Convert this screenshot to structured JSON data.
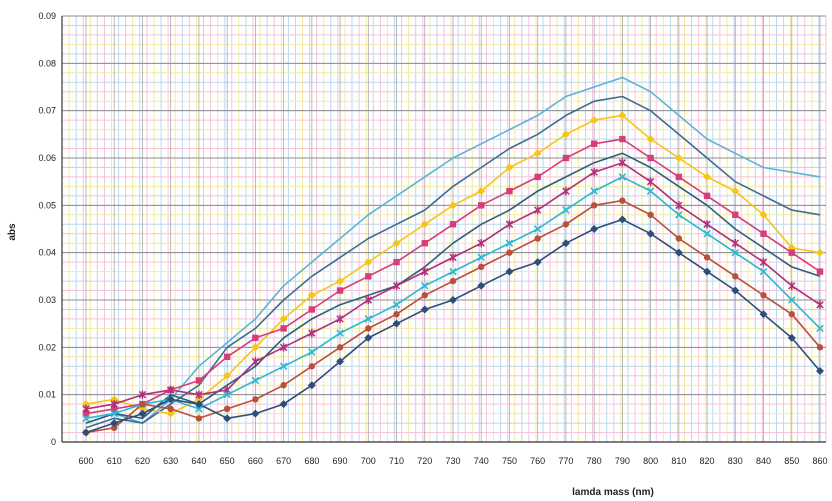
{
  "chart_data": {
    "type": "line",
    "xlabel": "lamda mass (nm)",
    "ylabel": "abs",
    "x": [
      600,
      610,
      620,
      630,
      640,
      650,
      660,
      670,
      680,
      690,
      700,
      710,
      720,
      730,
      740,
      750,
      760,
      770,
      780,
      790,
      800,
      810,
      820,
      830,
      840,
      850,
      860
    ],
    "x_tick_labels": [
      "600",
      "610",
      "620",
      "630",
      "640",
      "650",
      "660",
      "670",
      "680",
      "690",
      "700",
      "710",
      "720",
      "730",
      "740",
      "750",
      "760",
      "770",
      "780",
      "790",
      "800",
      "810",
      "820",
      "830",
      "840",
      "850",
      "860"
    ],
    "ylim": [
      0,
      0.09
    ],
    "y_ticks": [
      0,
      0.01,
      0.02,
      0.03,
      0.04,
      0.05,
      0.06,
      0.07,
      0.08,
      0.09
    ],
    "y_tick_labels": [
      "0",
      "0.01",
      "0.02",
      "0.03",
      "0.04",
      "0.05",
      "0.06",
      "0.07",
      "0.08",
      "0.09"
    ],
    "grid": true,
    "legend": "none",
    "series": [
      {
        "color": "#5bb3d6",
        "marker": "none",
        "values": [
          0.004,
          0.006,
          0.004,
          0.009,
          0.016,
          0.021,
          0.026,
          0.033,
          0.038,
          0.043,
          0.048,
          0.052,
          0.056,
          0.06,
          0.063,
          0.066,
          0.069,
          0.073,
          0.075,
          0.077,
          0.074,
          0.069,
          0.064,
          0.061,
          0.058,
          0.057,
          0.056
        ]
      },
      {
        "color": "#3d6c93",
        "marker": "none",
        "values": [
          0.003,
          0.005,
          0.004,
          0.008,
          0.012,
          0.02,
          0.024,
          0.03,
          0.035,
          0.039,
          0.043,
          0.046,
          0.049,
          0.054,
          0.058,
          0.062,
          0.065,
          0.069,
          0.072,
          0.073,
          0.07,
          0.065,
          0.06,
          0.055,
          0.052,
          0.049,
          0.048
        ]
      },
      {
        "color": "#f5c518",
        "marker": "diamond",
        "values": [
          0.008,
          0.009,
          0.007,
          0.006,
          0.009,
          0.014,
          0.02,
          0.026,
          0.031,
          0.034,
          0.038,
          0.042,
          0.046,
          0.05,
          0.053,
          0.058,
          0.061,
          0.065,
          0.068,
          0.069,
          0.064,
          0.06,
          0.056,
          0.053,
          0.048,
          0.041,
          0.04
        ]
      },
      {
        "color": "#d63d7a",
        "marker": "square",
        "values": [
          0.006,
          0.007,
          0.008,
          0.011,
          0.013,
          0.018,
          0.022,
          0.024,
          0.028,
          0.032,
          0.035,
          0.038,
          0.042,
          0.046,
          0.05,
          0.053,
          0.056,
          0.06,
          0.063,
          0.064,
          0.06,
          0.056,
          0.052,
          0.048,
          0.044,
          0.04,
          0.036
        ]
      },
      {
        "color": "#2c5f7a",
        "marker": "none",
        "values": [
          0.004,
          0.006,
          0.005,
          0.01,
          0.008,
          0.012,
          0.016,
          0.022,
          0.026,
          0.029,
          0.031,
          0.033,
          0.037,
          0.042,
          0.046,
          0.049,
          0.053,
          0.056,
          0.059,
          0.061,
          0.058,
          0.054,
          0.05,
          0.045,
          0.041,
          0.037,
          0.035
        ]
      },
      {
        "color": "#b0307a",
        "marker": "star",
        "values": [
          0.007,
          0.008,
          0.01,
          0.011,
          0.01,
          0.011,
          0.017,
          0.02,
          0.023,
          0.026,
          0.03,
          0.033,
          0.036,
          0.039,
          0.042,
          0.046,
          0.049,
          0.053,
          0.057,
          0.059,
          0.055,
          0.05,
          0.046,
          0.042,
          0.038,
          0.033,
          0.029
        ]
      },
      {
        "color": "#2cb8d3",
        "marker": "x",
        "values": [
          0.005,
          0.006,
          0.008,
          0.009,
          0.007,
          0.01,
          0.013,
          0.016,
          0.019,
          0.023,
          0.026,
          0.029,
          0.033,
          0.036,
          0.039,
          0.042,
          0.045,
          0.049,
          0.053,
          0.056,
          0.053,
          0.048,
          0.044,
          0.04,
          0.036,
          0.03,
          0.024
        ]
      },
      {
        "color": "#b8513a",
        "marker": "circle",
        "values": [
          0.002,
          0.003,
          0.008,
          0.007,
          0.005,
          0.007,
          0.009,
          0.012,
          0.016,
          0.02,
          0.024,
          0.027,
          0.031,
          0.034,
          0.037,
          0.04,
          0.043,
          0.046,
          0.05,
          0.051,
          0.048,
          0.043,
          0.039,
          0.035,
          0.031,
          0.027,
          0.02
        ]
      },
      {
        "color": "#2e4d7b",
        "marker": "diamond",
        "values": [
          0.002,
          0.004,
          0.006,
          0.009,
          0.008,
          0.005,
          0.006,
          0.008,
          0.012,
          0.017,
          0.022,
          0.025,
          0.028,
          0.03,
          0.033,
          0.036,
          0.038,
          0.042,
          0.045,
          0.047,
          0.044,
          0.04,
          0.036,
          0.032,
          0.027,
          0.022,
          0.015
        ]
      }
    ],
    "colors": {
      "grid_minor_pink": "#f6c3dc",
      "grid_minor_yellow": "#f3eb9e",
      "grid_minor_blue": "#bcd7ee",
      "grid_major": "#8d8d8d"
    }
  }
}
